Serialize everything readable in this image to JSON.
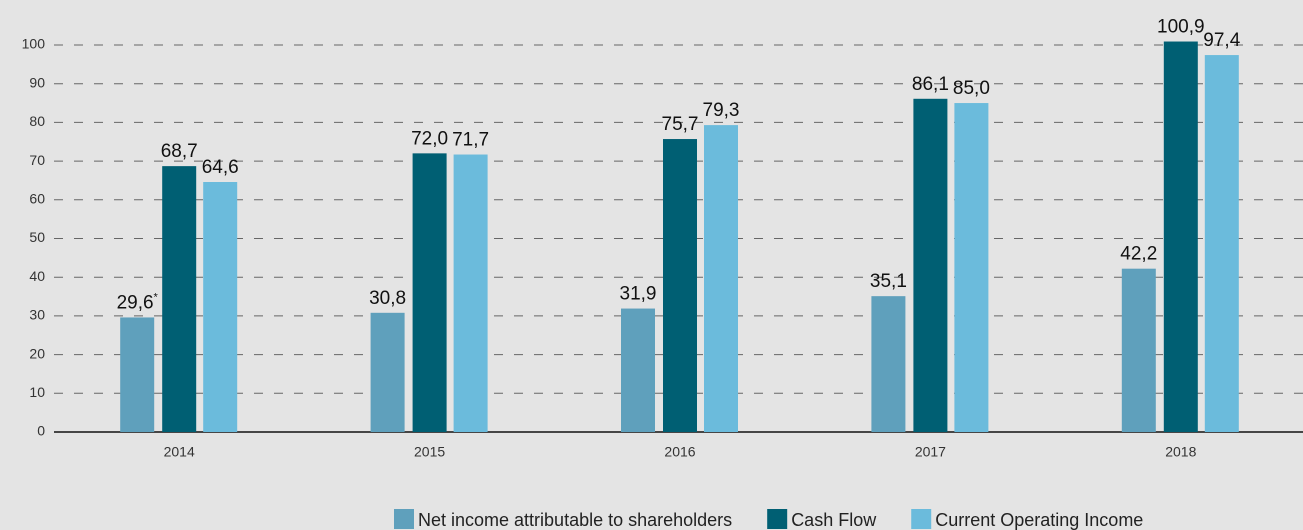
{
  "chart_data": {
    "type": "bar",
    "categories": [
      "2014",
      "2015",
      "2016",
      "2017",
      "2018"
    ],
    "series": [
      {
        "name": "Net income attributable to shareholders",
        "color": "#5fa0bc",
        "values": [
          29.6,
          30.8,
          31.9,
          35.1,
          42.2
        ],
        "value_labels": [
          "29,6",
          "30,8",
          "31,9",
          "35,1",
          "42,2"
        ]
      },
      {
        "name": "Cash Flow",
        "color": "#005f73",
        "values": [
          68.7,
          72.0,
          75.7,
          86.1,
          100.9
        ],
        "value_labels": [
          "68,7",
          "72,0",
          "75,7",
          "86,1",
          "100,9"
        ]
      },
      {
        "name": "Current Operating Income",
        "color": "#6bbbdc",
        "values": [
          64.6,
          71.7,
          79.3,
          85.0,
          97.4
        ],
        "value_labels": [
          "64,6",
          "71,7",
          "79,3",
          "85,0",
          "97,4"
        ]
      }
    ],
    "footnote_marker": "*",
    "ylim": [
      0,
      100
    ],
    "yticks": [
      0,
      10,
      20,
      30,
      40,
      50,
      60,
      70,
      80,
      90,
      100
    ],
    "grid": true,
    "legend": "bottom"
  }
}
